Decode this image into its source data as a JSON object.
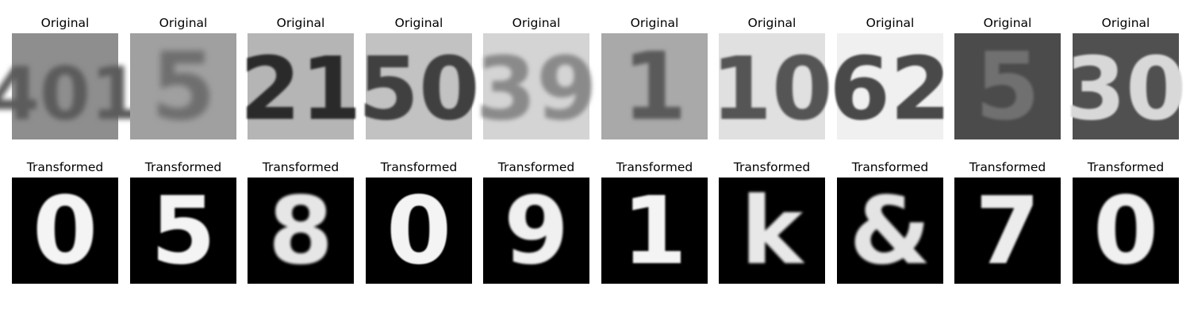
{
  "figure": {
    "rows": [
      {
        "title": "Original",
        "panels": [
          {
            "digits": "401",
            "bg": "#8e8e8e",
            "fg": "#5c5c5c",
            "blur": 3.2
          },
          {
            "digits": "5",
            "bg": "#a0a0a0",
            "fg": "#6e6e6e",
            "blur": 4.0
          },
          {
            "digits": "21",
            "bg": "#b5b5b5",
            "fg": "#2a2a2a",
            "blur": 1.4
          },
          {
            "digits": "50",
            "bg": "#c2c2c2",
            "fg": "#3f3f3f",
            "blur": 1.2
          },
          {
            "digits": "39",
            "bg": "#d4d4d4",
            "fg": "#8a8a8a",
            "blur": 2.6
          },
          {
            "digits": "1",
            "bg": "#a9a9a9",
            "fg": "#5a5a5a",
            "blur": 2.4
          },
          {
            "digits": "10",
            "bg": "#e0e0e0",
            "fg": "#555555",
            "blur": 1.3
          },
          {
            "digits": "62",
            "bg": "#f0f0f0",
            "fg": "#4a4a4a",
            "blur": 1.0
          },
          {
            "digits": "5",
            "bg": "#4b4b4b",
            "fg": "#6f6f6f",
            "blur": 1.6
          },
          {
            "digits": "30",
            "bg": "#505050",
            "fg": "#d8d8d8",
            "blur": 1.0
          }
        ]
      },
      {
        "title": "Transformed",
        "panels": [
          {
            "digits": "0",
            "bg": "#000000",
            "fg": "#f4f4f4",
            "blur": 1.0
          },
          {
            "digits": "5",
            "bg": "#000000",
            "fg": "#f4f4f4",
            "blur": 1.0
          },
          {
            "digits": "8",
            "bg": "#000000",
            "fg": "#e6e6e6",
            "blur": 1.6
          },
          {
            "digits": "0",
            "bg": "#000000",
            "fg": "#f4f4f4",
            "blur": 0.9
          },
          {
            "digits": "9",
            "bg": "#000000",
            "fg": "#f0f0f0",
            "blur": 1.2
          },
          {
            "digits": "1",
            "bg": "#000000",
            "fg": "#f4f4f4",
            "blur": 1.1
          },
          {
            "digits": "k",
            "bg": "#000000",
            "fg": "#e8e8e8",
            "blur": 1.5
          },
          {
            "digits": "&",
            "bg": "#000000",
            "fg": "#e4e4e4",
            "blur": 1.7
          },
          {
            "digits": "7",
            "bg": "#000000",
            "fg": "#ececec",
            "blur": 1.3
          },
          {
            "digits": "0",
            "bg": "#000000",
            "fg": "#f0f0f0",
            "blur": 1.2
          }
        ]
      }
    ]
  }
}
